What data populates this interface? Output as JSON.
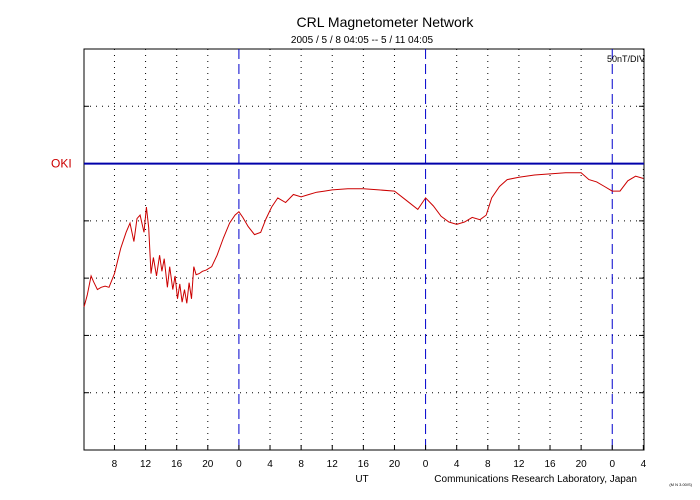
{
  "chart_data": {
    "type": "line",
    "title": "CRL Magnetometer Network",
    "subtitle": "2005 / 5 / 8   04:05 --  5 / 11   04:05",
    "scale_label": "50nT/DIV",
    "station": "OKI",
    "xlabel": "UT",
    "credit": "Communications Research Laboratory, Japan",
    "x_range_hours": [
      4.083,
      76.083
    ],
    "x_ticks": [
      {
        "h": 8,
        "label": "8"
      },
      {
        "h": 12,
        "label": "12"
      },
      {
        "h": 16,
        "label": "16"
      },
      {
        "h": 20,
        "label": "20"
      },
      {
        "h": 24,
        "label": "0"
      },
      {
        "h": 28,
        "label": "4"
      },
      {
        "h": 32,
        "label": "8"
      },
      {
        "h": 36,
        "label": "12"
      },
      {
        "h": 40,
        "label": "16"
      },
      {
        "h": 44,
        "label": "20"
      },
      {
        "h": 48,
        "label": "0"
      },
      {
        "h": 52,
        "label": "4"
      },
      {
        "h": 56,
        "label": "8"
      },
      {
        "h": 60,
        "label": "12"
      },
      {
        "h": 64,
        "label": "16"
      },
      {
        "h": 68,
        "label": "20"
      },
      {
        "h": 72,
        "label": "0"
      },
      {
        "h": 76,
        "label": "4"
      }
    ],
    "day_boundaries_hours": [
      24,
      48,
      72
    ],
    "y_unit": "nT",
    "y_range": [
      -250,
      100
    ],
    "y_gridlines": [
      -200,
      -150,
      -100,
      -50,
      0,
      50
    ],
    "baseline_value": 0,
    "series": [
      {
        "color": "#cc0000",
        "hours": [
          4.1,
          4.5,
          5.0,
          5.3,
          5.8,
          6.3,
          6.8,
          7.3,
          8.0,
          8.8,
          9.5,
          10.0,
          10.5,
          10.9,
          11.3,
          11.8,
          12.1,
          12.4,
          12.7,
          13.0,
          13.4,
          13.8,
          14.1,
          14.4,
          14.8,
          15.1,
          15.5,
          15.8,
          16.1,
          16.4,
          16.7,
          17.0,
          17.3,
          17.6,
          17.9,
          18.2,
          18.5,
          18.9,
          19.3,
          19.8,
          20.5,
          21.2,
          22.0,
          22.8,
          23.5,
          24.0,
          24.5,
          25.2,
          26.0,
          26.8,
          27.5,
          28.2,
          29.0,
          30.0,
          31.0,
          32.0,
          33.0,
          34.0,
          35.0,
          36.0,
          38.0,
          40.0,
          42.0,
          44.0,
          45.5,
          47.0,
          48.0,
          49.0,
          50.0,
          51.0,
          52.0,
          53.0,
          54.0,
          55.0,
          55.8,
          56.5,
          57.5,
          58.5,
          60.0,
          62.0,
          64.0,
          66.0,
          68.0,
          69.0,
          70.0,
          71.0,
          72.0,
          73.0,
          74.0,
          75.0,
          76.0
        ],
        "values": [
          -125,
          -115,
          -98,
          -103,
          -110,
          -108,
          -107,
          -108,
          -96,
          -74,
          -60,
          -52,
          -68,
          -48,
          -45,
          -60,
          -38,
          -56,
          -96,
          -82,
          -98,
          -80,
          -94,
          -83,
          -108,
          -90,
          -110,
          -98,
          -118,
          -105,
          -121,
          -110,
          -122,
          -104,
          -118,
          -90,
          -97,
          -96,
          -94,
          -93,
          -90,
          -80,
          -65,
          -52,
          -45,
          -42,
          -47,
          -55,
          -62,
          -60,
          -48,
          -38,
          -30,
          -34,
          -27,
          -29,
          -27,
          -25,
          -24,
          -23,
          -22,
          -22,
          -23,
          -24,
          -32,
          -40,
          -30,
          -37,
          -46,
          -51,
          -53,
          -51,
          -47,
          -49,
          -45,
          -30,
          -20,
          -14,
          -12,
          -10,
          -9,
          -8,
          -8,
          -14,
          -16,
          -20,
          -24,
          -24,
          -15,
          -11,
          -13
        ]
      }
    ],
    "small_mark": "(M N 3.00/S)"
  }
}
